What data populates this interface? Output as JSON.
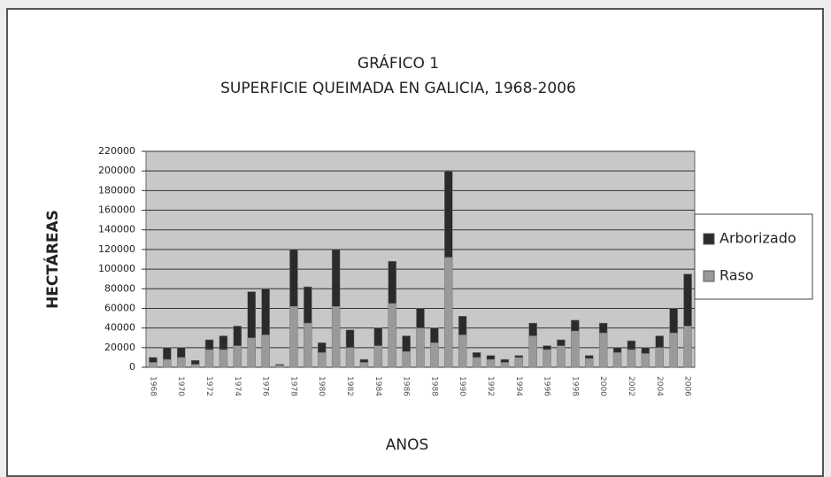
{
  "chart_data": {
    "type": "stacked_bar",
    "title": "GRÁFICO 1",
    "subtitle": "SUPERFICIE QUEIMADA EN GALICIA, 1968-2006",
    "ylabel": "HECTÁREAS",
    "xlabel": "ANOS",
    "categories": [
      "1968",
      null,
      "1970",
      null,
      "1972",
      null,
      "1974",
      null,
      "1976",
      null,
      "1978",
      null,
      "1980",
      null,
      "1982",
      null,
      "1984",
      null,
      "1986",
      null,
      "1988",
      null,
      "1990",
      null,
      "1992",
      null,
      "1994",
      null,
      "1996",
      null,
      "1998",
      null,
      "2000",
      null,
      "2002",
      null,
      "2004",
      null,
      "2006"
    ],
    "series": [
      {
        "name": "Raso",
        "color": "#9a9a9a",
        "values": [
          5000,
          8000,
          10000,
          3000,
          18000,
          18000,
          22000,
          30000,
          33000,
          2000,
          62000,
          45000,
          15000,
          62000,
          20000,
          5000,
          22000,
          65000,
          16000,
          40000,
          25000,
          112000,
          33000,
          10000,
          8000,
          5000,
          10000,
          32000,
          18000,
          22000,
          37000,
          9000,
          35000,
          15000,
          18000,
          14000,
          20000,
          35000,
          42000
        ]
      },
      {
        "name": "Arborizado",
        "color": "#2b2b2b",
        "values": [
          5000,
          12000,
          10000,
          4000,
          10000,
          14000,
          20000,
          47000,
          47000,
          1000,
          58000,
          37000,
          10000,
          58000,
          18000,
          3000,
          18000,
          43000,
          16000,
          20000,
          15000,
          88000,
          19000,
          5000,
          4000,
          3000,
          2000,
          13000,
          4000,
          6000,
          11000,
          3000,
          10000,
          5000,
          9000,
          6000,
          12000,
          25000,
          53000
        ]
      }
    ],
    "ylim": [
      0,
      220000
    ],
    "yticks": [
      0,
      20000,
      40000,
      60000,
      80000,
      100000,
      120000,
      140000,
      160000,
      180000,
      200000,
      220000
    ],
    "grid": true,
    "legend": "right"
  }
}
